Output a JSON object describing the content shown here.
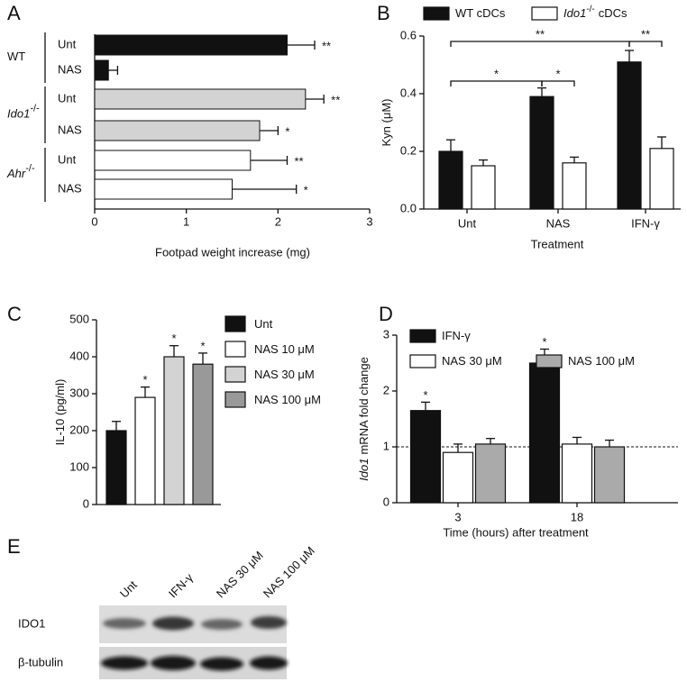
{
  "chart_data": [
    {
      "panel": "A",
      "type": "barh",
      "categories": [
        "Unt",
        "NAS",
        "Unt",
        "NAS",
        "Unt",
        "NAS"
      ],
      "groups": [
        {
          "name": "WT"
        },
        {
          "name": "Ido1",
          "sup": "-/-"
        },
        {
          "name": "Ahr",
          "sup": "-/-"
        }
      ],
      "values": [
        2.1,
        0.15,
        2.3,
        1.8,
        1.7,
        1.5
      ],
      "errors": [
        0.3,
        0.1,
        0.2,
        0.2,
        0.4,
        0.7
      ],
      "annotations": [
        "**",
        null,
        "**",
        "*",
        "**",
        "*"
      ],
      "colors": [
        "#111111",
        "#111111",
        "#d3d3d3",
        "#d3d3d3",
        "#ffffff",
        "#ffffff"
      ],
      "xlim": [
        0,
        3
      ],
      "xticks": [
        0,
        1,
        2,
        3
      ],
      "xlabel": "Footpad weight increase (mg)"
    },
    {
      "panel": "B",
      "type": "bar",
      "categories": [
        "Unt",
        "NAS",
        "IFN-γ"
      ],
      "series": [
        {
          "name": "WT cDCs",
          "color": "#111111",
          "values": [
            0.2,
            0.39,
            0.51
          ],
          "errors": [
            0.04,
            0.03,
            0.04
          ]
        },
        {
          "name": "Ido1",
          "name_sup": "-/-",
          "name_suffix": "cDCs",
          "color": "#ffffff",
          "values": [
            0.15,
            0.16,
            0.21
          ],
          "errors": [
            0.02,
            0.02,
            0.04
          ]
        }
      ],
      "ylim": [
        0,
        0.6
      ],
      "yticks": [
        {
          "value": 0,
          "label": "0.0"
        },
        0.2,
        0.4,
        0.6
      ],
      "ylabel": "Kyn (μM)",
      "xlabel": "Treatment",
      "comparisons": [
        "**",
        "*",
        "*",
        "**"
      ]
    },
    {
      "panel": "C",
      "type": "bar",
      "categories": [
        "Unt",
        "NAS 10 μM",
        "NAS 30 μM",
        "NAS 100 μM"
      ],
      "values": [
        200,
        290,
        400,
        380
      ],
      "errors": [
        25,
        28,
        30,
        30
      ],
      "annotations": [
        null,
        "*",
        "*",
        "*"
      ],
      "colors": [
        "#111111",
        "#ffffff",
        "#d3d3d3",
        "#999999"
      ],
      "ylim": [
        0,
        500
      ],
      "yticks": [
        0,
        100,
        200,
        300,
        400,
        500
      ],
      "ylabel": "IL-10 (pg/ml)"
    },
    {
      "panel": "D",
      "type": "bar",
      "categories": [
        "3",
        "18"
      ],
      "series": [
        {
          "name": "IFN-γ",
          "color": "#111111",
          "values": [
            1.65,
            2.5
          ],
          "errors": [
            0.15,
            0.25
          ],
          "annotations": [
            "*",
            "*"
          ]
        },
        {
          "name": "NAS 30 μM",
          "color": "#ffffff",
          "values": [
            0.9,
            1.05
          ],
          "errors": [
            0.15,
            0.12
          ]
        },
        {
          "name": "NAS 100 μM",
          "color": "#aaaaaa",
          "values": [
            1.05,
            1.0
          ],
          "errors": [
            0.1,
            0.12
          ]
        }
      ],
      "ylim": [
        0,
        3
      ],
      "yticks": [
        0,
        1,
        2,
        3
      ],
      "reference_line": 1,
      "ylabel_italic": "Ido1",
      "ylabel": "mRNA fold change",
      "xlabel": "Time (hours) after treatment"
    }
  ],
  "blot": {
    "panel": "E",
    "lanes": [
      "Unt",
      "IFN-γ",
      "NAS 30 μM",
      "NAS 100 μM"
    ],
    "rows": [
      "IDO1",
      "β-tubulin"
    ]
  }
}
